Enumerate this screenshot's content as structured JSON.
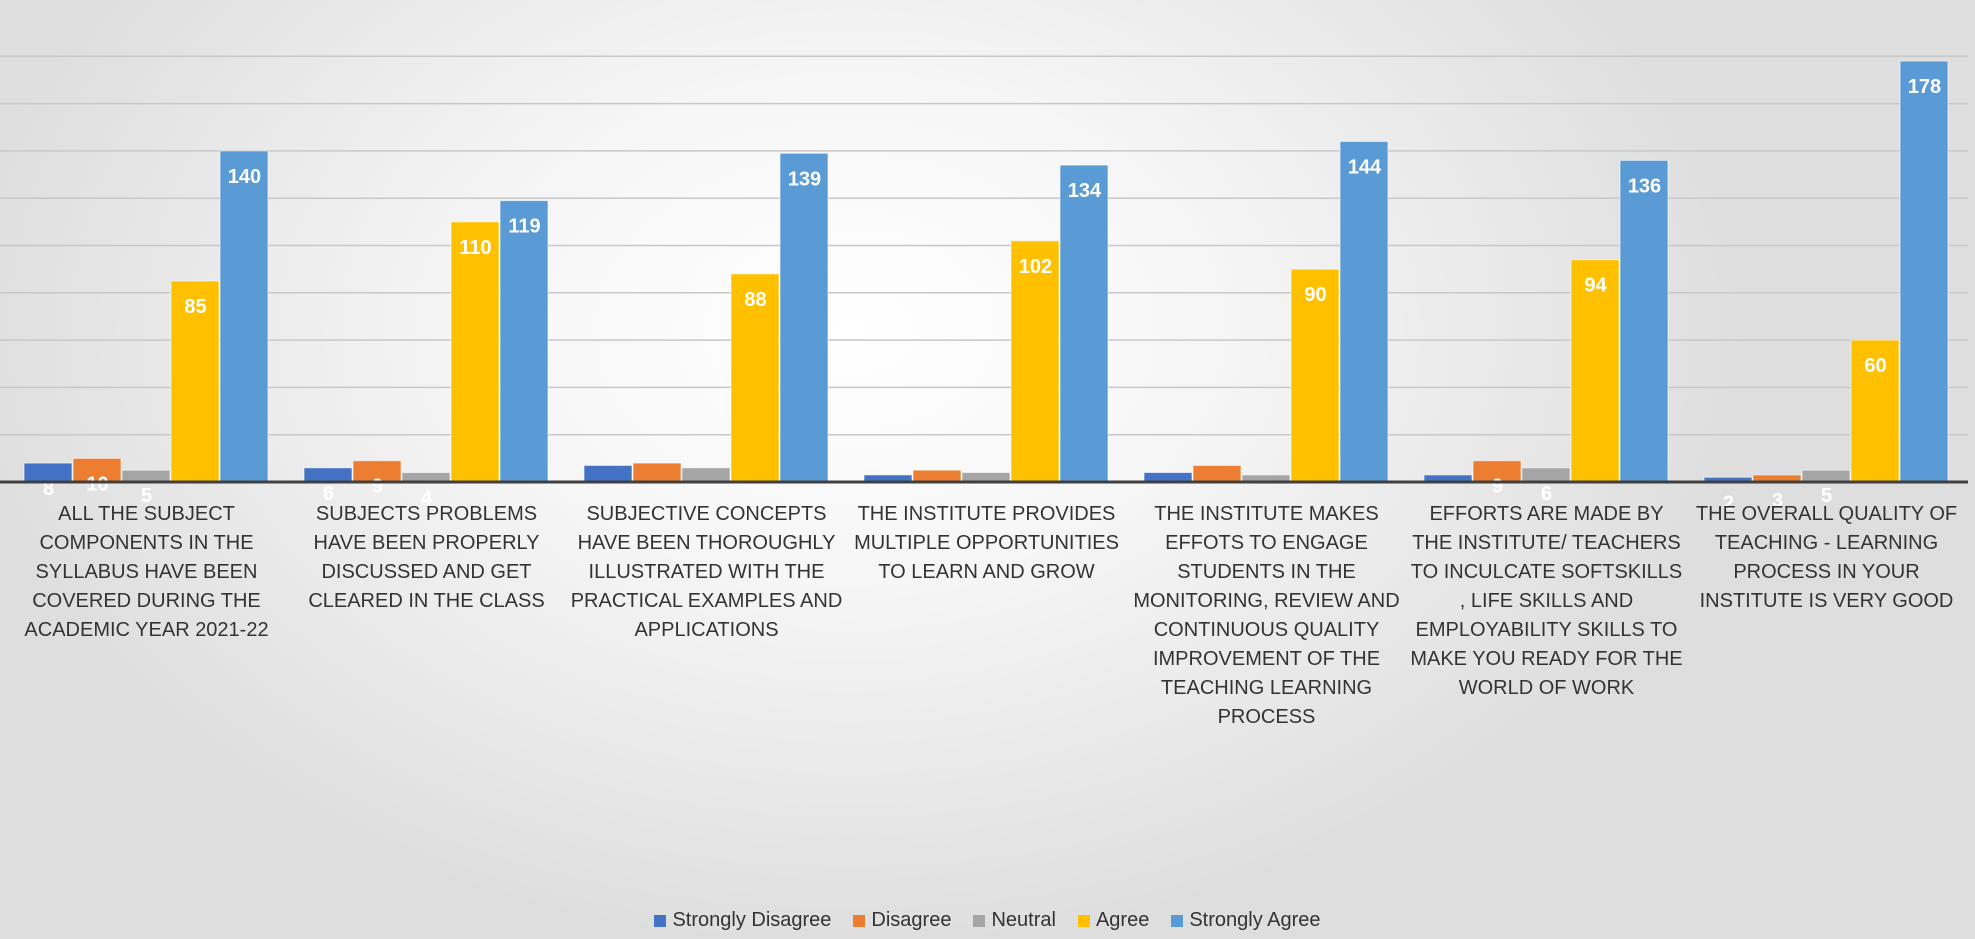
{
  "chart_data": {
    "type": "bar",
    "title": "",
    "xlabel": "",
    "ylabel": "",
    "ylim": [
      0,
      190
    ],
    "grid": true,
    "legend_position": "bottom",
    "categories": [
      "ALL THE SUBJECT COMPONENTS IN THE SYLLABUS HAVE BEEN COVERED DURING THE ACADEMIC YEAR 2021-22",
      "SUBJECTS PROBLEMS HAVE BEEN PROPERLY DISCUSSED AND GET CLEARED IN THE CLASS",
      "SUBJECTIVE CONCEPTS HAVE BEEN THOROUGHLY ILLUSTRATED WITH THE PRACTICAL EXAMPLES AND APPLICATIONS",
      "THE INSTITUTE PROVIDES MULTIPLE OPPORTUNITIES TO LEARN AND GROW",
      "THE INSTITUTE MAKES EFFOTS TO ENGAGE STUDENTS IN THE MONITORING, REVIEW AND CONTINUOUS QUALITY IMPROVEMENT OF THE TEACHING LEARNING PROCESS",
      "EFFORTS ARE MADE BY THE INSTITUTE/ TEACHERS TO INCULCATE SOFTSKILLS , LIFE SKILLS AND EMPLOYABILITY SKILLS TO MAKE YOU READY FOR THE WORLD OF WORK",
      "THE OVERALL QUALITY OF TEACHING - LEARNING PROCESS IN YOUR INSTITUTE IS VERY GOOD"
    ],
    "series": [
      {
        "name": "Strongly Disagree",
        "color": "#4472c4",
        "values": [
          8,
          6,
          7,
          3,
          4,
          3,
          2
        ]
      },
      {
        "name": "Disagree",
        "color": "#ed7d31",
        "values": [
          10,
          9,
          8,
          5,
          7,
          9,
          3
        ]
      },
      {
        "name": "Neutral",
        "color": "#a5a5a5",
        "values": [
          5,
          4,
          6,
          4,
          3,
          6,
          5
        ]
      },
      {
        "name": "Agree",
        "color": "#ffc000",
        "values": [
          85,
          110,
          88,
          102,
          90,
          94,
          60
        ]
      },
      {
        "name": "Strongly Agree",
        "color": "#5b9bd5",
        "values": [
          140,
          119,
          139,
          134,
          144,
          136,
          178
        ]
      }
    ],
    "data_labels": [
      [
        "8",
        "10",
        "5",
        "85",
        "140"
      ],
      [
        "6",
        "9",
        "4",
        "110",
        "119"
      ],
      [
        "",
        "",
        "",
        "88",
        "139"
      ],
      [
        "",
        "",
        "",
        "102",
        "134"
      ],
      [
        "",
        "",
        "",
        "90",
        "144"
      ],
      [
        "",
        "9",
        "6",
        "94",
        "136"
      ],
      [
        "2",
        "3",
        "5",
        "60",
        "178"
      ]
    ]
  }
}
